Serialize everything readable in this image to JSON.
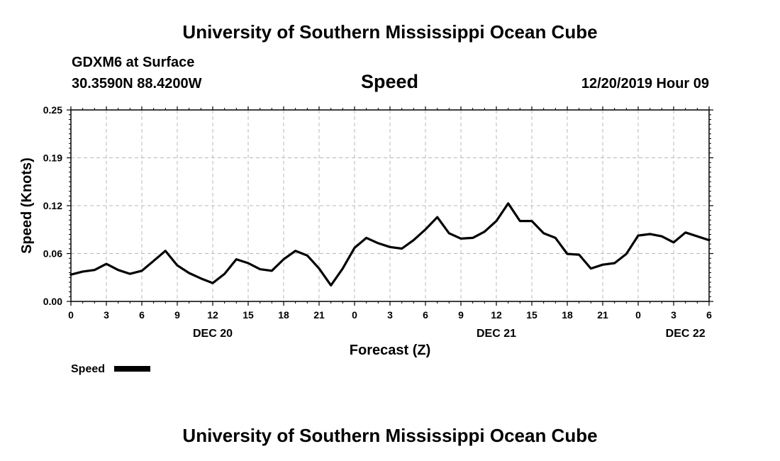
{
  "header": {
    "top_title": "University of Southern Mississippi Ocean Cube",
    "station": "GDXM6 at Surface",
    "coordinates": "30.3590N 88.4200W",
    "valid_time": "12/20/2019 Hour 09",
    "bottom_title": "University of Southern Mississippi Ocean Cube"
  },
  "chart_data": {
    "type": "line",
    "title": "Speed",
    "xlabel": "Forecast (Z)",
    "ylabel": "Speed (Knots)",
    "ylim": [
      0,
      0.25
    ],
    "xlim": [
      0,
      54
    ],
    "yticks": [
      "0.00",
      "0.06",
      "0.12",
      "0.19",
      "0.25"
    ],
    "ytick_values": [
      0,
      0.0625,
      0.125,
      0.1875,
      0.25
    ],
    "xticks": [
      0,
      3,
      6,
      9,
      12,
      15,
      18,
      21,
      24,
      27,
      30,
      33,
      36,
      39,
      42,
      45,
      48,
      51,
      54
    ],
    "xtick_labels": [
      "0",
      "3",
      "6",
      "9",
      "12",
      "15",
      "18",
      "21",
      "0",
      "3",
      "6",
      "9",
      "12",
      "15",
      "18",
      "21",
      "0",
      "3",
      "6"
    ],
    "day_labels": [
      {
        "label": "DEC 20",
        "x": 12
      },
      {
        "label": "DEC 21",
        "x": 36
      },
      {
        "label": "DEC 22",
        "x": 52
      }
    ],
    "grid": true,
    "legend": {
      "label": "Speed",
      "position": "bottom-left"
    },
    "series": [
      {
        "name": "Speed",
        "x": [
          0,
          1,
          2,
          3,
          4,
          5,
          6,
          7,
          8,
          9,
          10,
          11,
          12,
          13,
          14,
          15,
          16,
          17,
          18,
          19,
          20,
          21,
          22,
          23,
          24,
          25,
          26,
          27,
          28,
          29,
          30,
          31,
          32,
          33,
          34,
          35,
          36,
          37,
          38,
          39,
          40,
          41,
          42,
          43,
          44,
          45,
          46,
          47,
          48,
          49,
          50,
          51,
          52,
          53,
          54
        ],
        "values": [
          0.035,
          0.039,
          0.041,
          0.049,
          0.041,
          0.036,
          0.04,
          0.053,
          0.066,
          0.047,
          0.037,
          0.03,
          0.024,
          0.036,
          0.055,
          0.05,
          0.042,
          0.04,
          0.055,
          0.066,
          0.06,
          0.043,
          0.021,
          0.043,
          0.07,
          0.083,
          0.076,
          0.071,
          0.069,
          0.08,
          0.094,
          0.11,
          0.089,
          0.082,
          0.083,
          0.091,
          0.105,
          0.128,
          0.105,
          0.105,
          0.089,
          0.083,
          0.062,
          0.061,
          0.043,
          0.048,
          0.05,
          0.062,
          0.086,
          0.088,
          0.085,
          0.077,
          0.09,
          0.085,
          0.08
        ]
      }
    ]
  }
}
